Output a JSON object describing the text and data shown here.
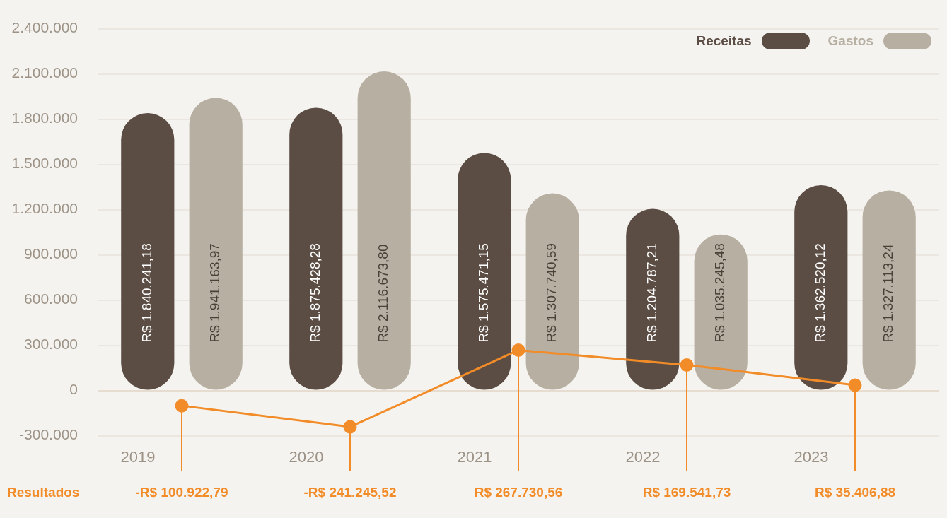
{
  "chart_data": {
    "type": "bar",
    "categories": [
      "2019",
      "2020",
      "2021",
      "2022",
      "2023"
    ],
    "series": [
      {
        "name": "Receitas",
        "color": "#5b4d43",
        "values": [
          1840241.18,
          1875428.28,
          1575471.15,
          1204787.21,
          1362520.12
        ],
        "value_labels": [
          "R$ 1.840.241,18",
          "R$ 1.875.428,28",
          "R$ 1.575.471,15",
          "R$ 1.204.787,21",
          "R$ 1.362.520,12"
        ]
      },
      {
        "name": "Gastos",
        "color": "#b7afa2",
        "values": [
          1941163.97,
          2116673.8,
          1307740.59,
          1035245.48,
          1327113.24
        ],
        "value_labels": [
          "R$ 1.941.163,97",
          "R$ 2.116.673,80",
          "R$ 1.307.740,59",
          "R$ 1.035.245,48",
          "R$ 1.327.113,24"
        ]
      },
      {
        "name": "Resultados",
        "type": "line",
        "color": "#f28c28",
        "values": [
          -100922.79,
          -241245.52,
          267730.56,
          169541.73,
          35406.88
        ],
        "value_labels": [
          "-R$ 100.922,79",
          "-R$ 241.245,52",
          "R$ 267.730,56",
          "R$ 169.541,73",
          "R$ 35.406,88"
        ]
      }
    ],
    "ylim": [
      -300000,
      2400000
    ],
    "yticks": [
      {
        "value": -300000,
        "label": "-300.000"
      },
      0,
      {
        "value": 300000,
        "label": "300.000"
      },
      {
        "value": 600000,
        "label": "600.000"
      },
      {
        "value": 900000,
        "label": "900.000"
      },
      {
        "value": 1200000,
        "label": "1.200.000"
      },
      {
        "value": 1500000,
        "label": "1.500.000"
      },
      {
        "value": 1800000,
        "label": "1.800.000"
      },
      {
        "value": 2100000,
        "label": "2.100.000"
      },
      {
        "value": 2400000,
        "label": "2.400.000"
      }
    ],
    "grid": "y",
    "legend": "top right",
    "marker": "circle",
    "line_style": "solid"
  }
}
